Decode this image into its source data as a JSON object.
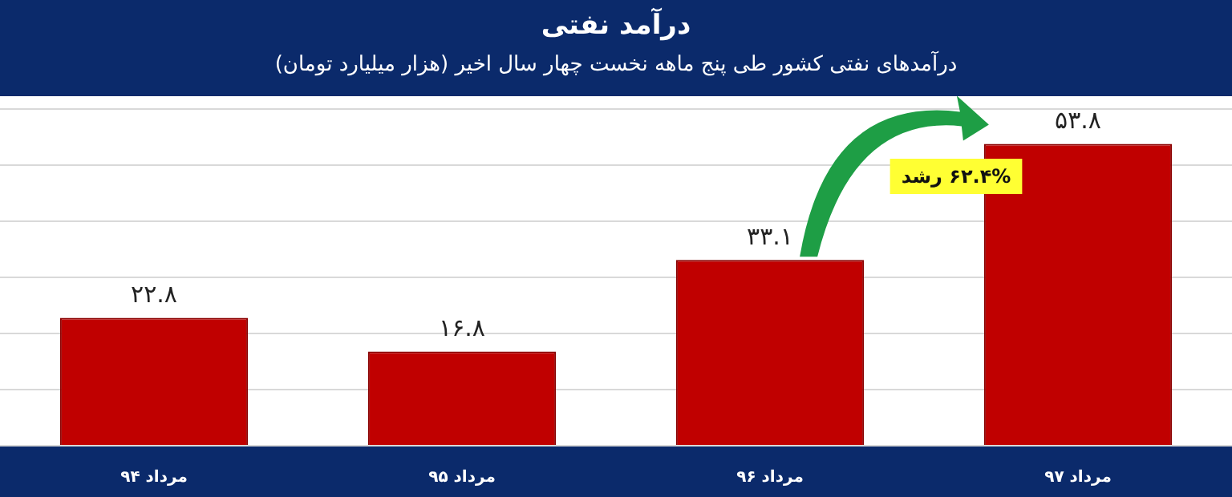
{
  "chart_data": {
    "type": "bar",
    "title": "درآمد نفتی",
    "subtitle": "درآمدهای نفتی کشور طی پنج ماهه نخست چهار سال اخیر (هزار میلیارد تومان)",
    "categories": [
      "مرداد ۹۴",
      "مرداد ۹۵",
      "مرداد ۹۶",
      "مرداد ۹۷"
    ],
    "values": [
      22.8,
      16.8,
      33.1,
      53.8
    ],
    "value_labels": [
      "۲۲.۸",
      "۱۶.۸",
      "۳۳.۱",
      "۵۳.۸"
    ],
    "color": "#c00000",
    "ylim": [
      0,
      60
    ],
    "yticks": [
      {
        "value": 0,
        "label": null
      },
      {
        "value": 10,
        "label": null
      },
      {
        "value": 20,
        "label": null
      },
      {
        "value": 30,
        "label": null
      },
      {
        "value": 40,
        "label": null
      },
      {
        "value": 50,
        "label": null
      },
      {
        "value": 60,
        "label": null
      }
    ],
    "grid": "y",
    "tick_labels": "x",
    "legend": false,
    "annotations": [
      "۶۲.۴% رشد"
    ]
  }
}
